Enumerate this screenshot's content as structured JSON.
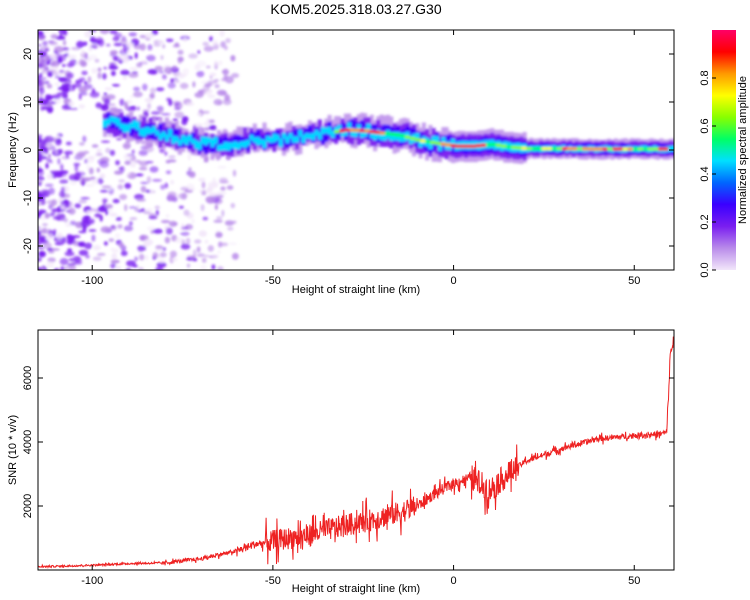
{
  "title": "KOM5.2025.318.03.27.G30",
  "chart_data": [
    {
      "type": "heatmap",
      "name": "spectrogram",
      "xlabel": "Height of straight line (km)",
      "ylabel": "Frequency (Hz)",
      "xlim": [
        -115,
        61
      ],
      "ylim": [
        -25,
        25
      ],
      "xticks": [
        -100,
        -50,
        0,
        50
      ],
      "xtick_labels": [
        "-100",
        "-50",
        "0",
        "50"
      ],
      "yticks": [
        -20,
        -10,
        0,
        10,
        20
      ],
      "ytick_labels": [
        "-20",
        "-10",
        "0",
        "10",
        "20"
      ],
      "ridge_x": [
        -96,
        -90,
        -85,
        -80,
        -75,
        -70,
        -65,
        -60,
        -55,
        -50,
        -45,
        -40,
        -35,
        -30,
        -25,
        -20,
        -15,
        -10,
        -5,
        0,
        5,
        10,
        15,
        20,
        30,
        40,
        50,
        60
      ],
      "ridge_y": [
        5.8,
        5.0,
        4.0,
        3.2,
        2.0,
        1.4,
        1.2,
        1.5,
        2.2,
        1.8,
        2.6,
        3.0,
        3.6,
        4.2,
        4.0,
        3.5,
        3.0,
        2.0,
        1.4,
        0.8,
        0.8,
        1.2,
        0.6,
        0.3,
        0.3,
        0.2,
        0.2,
        0.2
      ],
      "colorbar": {
        "label": "Normalized spectral amplitude",
        "range": [
          0,
          1
        ],
        "ticks": [
          0.0,
          0.2,
          0.4,
          0.6,
          0.8
        ],
        "tick_labels": [
          "0.0",
          "0.2",
          "0.4",
          "0.6",
          "0.8"
        ],
        "colors": [
          "#f2e6fa",
          "#b98bea",
          "#7a1ef0",
          "#3a00ff",
          "#0066ff",
          "#00e0ff",
          "#00ff66",
          "#88ff00",
          "#ffff00",
          "#ff9900",
          "#ff0000",
          "#ff0066"
        ]
      }
    },
    {
      "type": "line",
      "name": "snr",
      "xlabel": "Height of straight line (km)",
      "ylabel": "SNR (10 * v/v)",
      "xlim": [
        -115,
        61
      ],
      "ylim": [
        0,
        7500
      ],
      "xticks": [
        -100,
        -50,
        0,
        50
      ],
      "xtick_labels": [
        "-100",
        "-50",
        "0",
        "50"
      ],
      "yticks": [
        2000,
        4000,
        6000
      ],
      "ytick_labels": [
        "2000",
        "4000",
        "6000"
      ],
      "color": "#ee2222",
      "x": [
        -115,
        -100,
        -90,
        -80,
        -70,
        -60,
        -55,
        -50,
        -45,
        -40,
        -35,
        -30,
        -25,
        -20,
        -15,
        -10,
        -5,
        0,
        5,
        10,
        15,
        20,
        30,
        40,
        50,
        57,
        59,
        60,
        61
      ],
      "y": [
        100,
        150,
        200,
        220,
        350,
        600,
        800,
        900,
        1000,
        1100,
        1250,
        1400,
        1500,
        1650,
        1800,
        2000,
        2400,
        2700,
        2900,
        2500,
        3000,
        3400,
        3800,
        4100,
        4200,
        4250,
        4300,
        6800,
        7200
      ]
    }
  ]
}
